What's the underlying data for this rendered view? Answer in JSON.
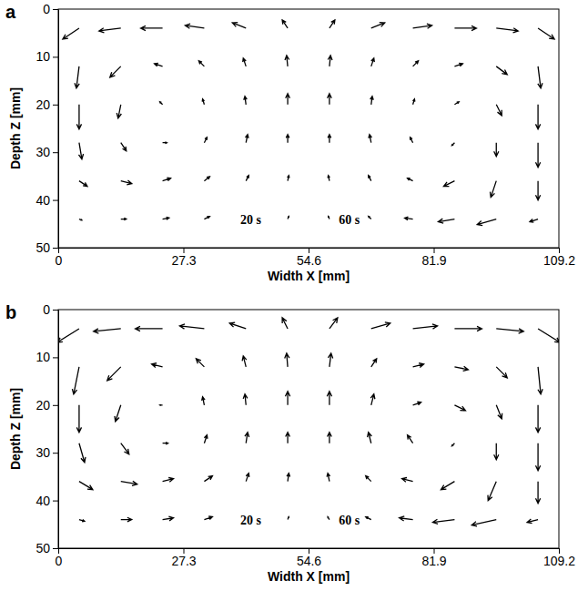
{
  "chart_data": [
    {
      "type": "quiver",
      "title": "a",
      "xlabel": "Width X [mm]",
      "ylabel": "Depth Z [mm]",
      "xlim": [
        0,
        109.2
      ],
      "xticks": [
        0,
        27.3,
        54.6,
        81.9,
        109.2
      ],
      "ylim": [
        50,
        0
      ],
      "yticks": [
        0,
        10,
        20,
        30,
        40,
        50
      ],
      "color": "#000000",
      "annotations": [
        {
          "text": "20 s",
          "x": 42,
          "y": 45
        },
        {
          "text": "60 s",
          "x": 63.5,
          "y": 45
        }
      ],
      "x": [
        4.55,
        13.65,
        22.75,
        31.85,
        40.95,
        50.05,
        59.15,
        68.25,
        77.35,
        86.45,
        95.55,
        104.65
      ],
      "z": [
        4,
        12,
        20,
        28,
        36,
        44
      ],
      "u": [
        [
          -3,
          -4,
          -4,
          -3.5,
          -2.5,
          -1,
          1,
          2.5,
          3.5,
          4,
          4,
          3
        ],
        [
          -0.5,
          -2,
          -1.5,
          -1,
          -0.5,
          -0.2,
          0.2,
          0.5,
          1,
          1.5,
          2,
          0.5
        ],
        [
          0,
          -0.5,
          -0.5,
          -0.3,
          -0.2,
          0,
          0,
          0.2,
          0.3,
          0.8,
          1,
          0
        ],
        [
          0.5,
          1,
          0.8,
          0.5,
          0.3,
          0,
          0,
          -0.3,
          -0.5,
          -0.5,
          0,
          0
        ],
        [
          1.5,
          2,
          1.5,
          1,
          0.5,
          0.2,
          -0.2,
          -0.5,
          -1,
          -2,
          -1,
          0
        ],
        [
          0.5,
          1,
          1.2,
          1,
          0.5,
          0.2,
          -0.2,
          -0.5,
          -1.5,
          -3,
          -3.5,
          -1.5
        ]
      ],
      "w": [
        [
          2,
          0.5,
          0,
          -0.5,
          -1,
          -1.5,
          -1.5,
          -1,
          -0.5,
          0,
          0.5,
          2
        ],
        [
          4,
          2,
          -0.5,
          -1,
          -1.5,
          -2,
          -2,
          -1.5,
          -1,
          -0.5,
          1.5,
          4
        ],
        [
          4.5,
          2.5,
          -0.5,
          -1,
          -1.5,
          -2,
          -2,
          -1.5,
          -1,
          -0.5,
          2,
          4.5
        ],
        [
          3,
          1.5,
          0,
          -1,
          -1.5,
          -1.5,
          -1.5,
          -1.5,
          -1,
          0.5,
          2.5,
          4.5
        ],
        [
          1,
          0.5,
          -0.5,
          -0.8,
          -1,
          -1,
          -1,
          -1,
          -0.5,
          1,
          3,
          3.5
        ],
        [
          0.2,
          0,
          -0.2,
          -0.5,
          -0.5,
          -0.5,
          -0.5,
          -0.5,
          -0.2,
          0.5,
          1,
          0.5
        ]
      ]
    },
    {
      "type": "quiver",
      "title": "b",
      "xlabel": "Width X [mm]",
      "ylabel": "Depth Z [mm]",
      "xlim": [
        0,
        109.2
      ],
      "xticks": [
        0,
        27.3,
        54.6,
        81.9,
        109.2
      ],
      "ylim": [
        50,
        0
      ],
      "yticks": [
        0,
        10,
        20,
        30,
        40,
        50
      ],
      "color": "#000000",
      "annotations": [
        {
          "text": "20 s",
          "x": 42,
          "y": 45
        },
        {
          "text": "60 s",
          "x": 63.5,
          "y": 45
        }
      ],
      "x": [
        4.55,
        13.65,
        22.75,
        31.85,
        40.95,
        50.05,
        59.15,
        68.25,
        77.35,
        86.45,
        95.55,
        104.65
      ],
      "z": [
        4,
        12,
        20,
        28,
        36,
        44
      ],
      "u": [
        [
          -4,
          -5,
          -5,
          -4.5,
          -3,
          -1,
          1.5,
          3.5,
          4.5,
          5,
          5,
          4
        ],
        [
          -1,
          -2.5,
          -2,
          -1.5,
          -0.5,
          -0.2,
          0.3,
          1,
          2,
          2.5,
          2,
          0.5
        ],
        [
          0,
          -1,
          -0.5,
          -0.3,
          -0.2,
          0,
          0,
          0.5,
          1.5,
          2,
          1,
          0
        ],
        [
          1,
          1.5,
          1,
          0.5,
          0.3,
          0,
          0,
          -0.5,
          -1,
          -0.5,
          0,
          0
        ],
        [
          2.5,
          3,
          2,
          1.5,
          0.5,
          0.2,
          -0.3,
          -1,
          -2,
          -2.5,
          -1.5,
          0
        ],
        [
          1,
          2,
          2,
          1.5,
          0.5,
          0.2,
          -0.3,
          -1,
          -2.5,
          -4,
          -4.5,
          -2
        ]
      ],
      "w": [
        [
          2.5,
          0.5,
          0,
          -0.5,
          -1,
          -2,
          -2,
          -1,
          -0.5,
          0,
          0.5,
          2.5
        ],
        [
          5,
          2.5,
          -0.5,
          -1.5,
          -2,
          -2.5,
          -2.5,
          -1.5,
          -0.5,
          0.5,
          2,
          5
        ],
        [
          5,
          3,
          0,
          -1.5,
          -2,
          -2.5,
          -2.5,
          -2,
          -0.5,
          1,
          2.5,
          5
        ],
        [
          3.5,
          2,
          0,
          -1.5,
          -2,
          -2,
          -2,
          -2,
          -1.5,
          0.5,
          3,
          5
        ],
        [
          1.5,
          0.5,
          -0.5,
          -1,
          -1.5,
          -1.5,
          -1.5,
          -1,
          -0.5,
          1.5,
          3.5,
          4
        ],
        [
          0.3,
          0,
          -0.3,
          -0.5,
          -0.5,
          -0.5,
          -0.5,
          -0.5,
          -0.3,
          0.5,
          1,
          0.5
        ]
      ]
    }
  ]
}
